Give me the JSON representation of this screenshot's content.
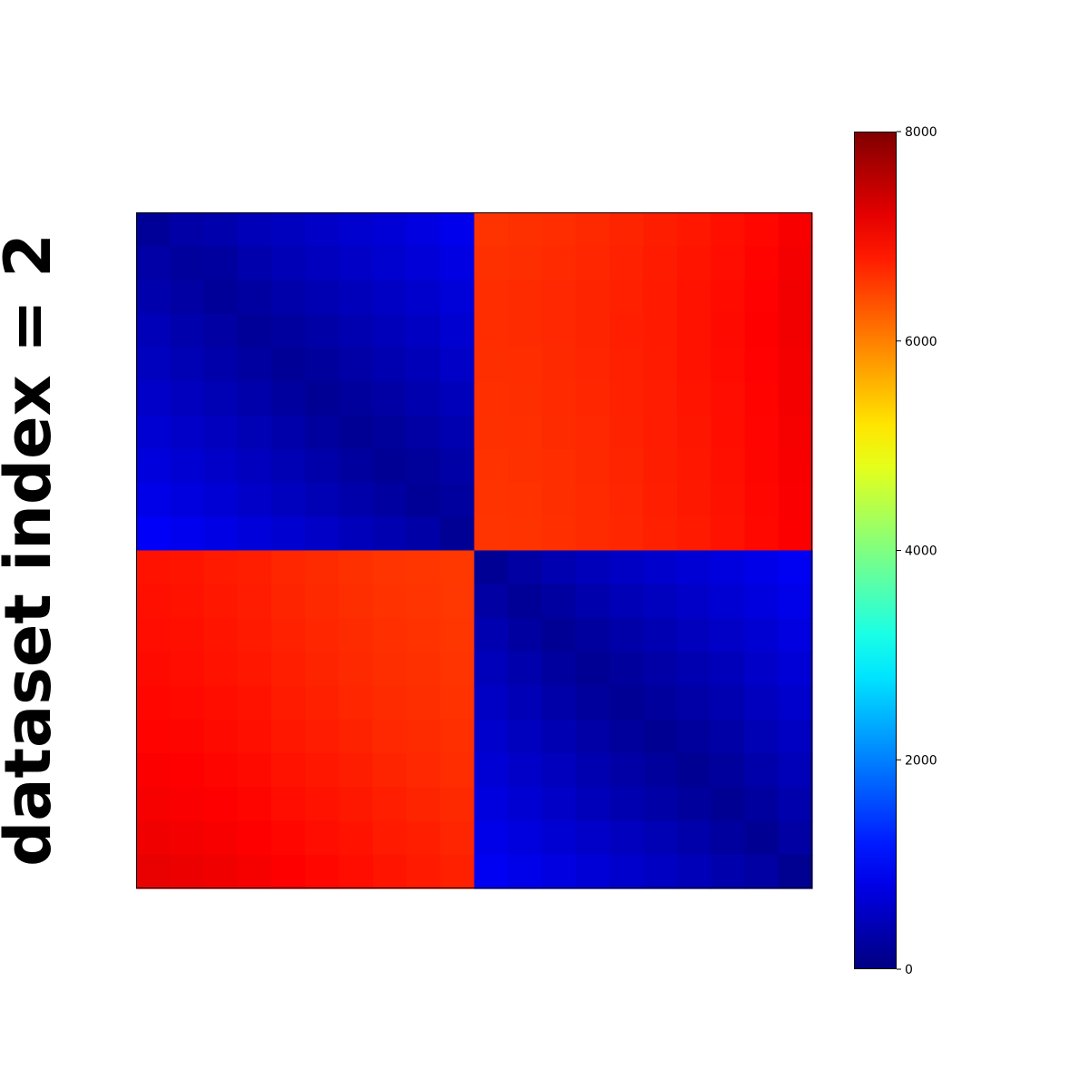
{
  "chart_data": {
    "type": "heatmap",
    "ylabel": "dataset index = 2",
    "xlabel": "",
    "title": "",
    "colormap": "jet",
    "grid": false,
    "rows": 20,
    "cols": 20,
    "value_range": [
      0,
      8000
    ],
    "colorbar": {
      "ticks": [
        0,
        2000,
        4000,
        6000,
        8000
      ],
      "tick_labels": [
        "0",
        "2000",
        "4000",
        "6000",
        "8000"
      ],
      "placement": "right"
    },
    "block_structure": {
      "blocks": 2,
      "block_size": 10,
      "diagonal_blocks": "within-group values from about 150 on the diagonal up to about 950 at the far corners",
      "off_diagonal_blocks": "cross-group values from about 6550 to about 7200"
    },
    "values": [
      [
        200,
        300,
        360,
        440,
        500,
        560,
        620,
        680,
        760,
        850,
        6600,
        6620,
        6650,
        6680,
        6720,
        6770,
        6820,
        6880,
        6950,
        7050
      ],
      [
        300,
        220,
        250,
        350,
        430,
        490,
        560,
        620,
        690,
        780,
        6620,
        6640,
        6670,
        6700,
        6740,
        6790,
        6840,
        6900,
        6980,
        7080
      ],
      [
        360,
        280,
        200,
        260,
        330,
        400,
        470,
        540,
        600,
        700,
        6650,
        6660,
        6690,
        6720,
        6750,
        6800,
        6850,
        6910,
        6990,
        7100
      ],
      [
        440,
        350,
        280,
        190,
        240,
        310,
        380,
        460,
        530,
        630,
        6650,
        6660,
        6690,
        6720,
        6760,
        6800,
        6860,
        6920,
        7000,
        7100
      ],
      [
        500,
        420,
        340,
        260,
        180,
        230,
        300,
        380,
        450,
        560,
        6640,
        6650,
        6680,
        6710,
        6750,
        6790,
        6850,
        6910,
        6990,
        7090
      ],
      [
        570,
        490,
        410,
        330,
        250,
        170,
        220,
        290,
        370,
        470,
        6630,
        6640,
        6670,
        6700,
        6740,
        6780,
        6840,
        6900,
        6980,
        7080
      ],
      [
        650,
        570,
        490,
        410,
        330,
        250,
        170,
        210,
        290,
        390,
        6620,
        6630,
        6660,
        6690,
        6730,
        6780,
        6830,
        6890,
        6970,
        7060
      ],
      [
        730,
        650,
        570,
        490,
        410,
        330,
        250,
        170,
        210,
        310,
        6610,
        6620,
        6650,
        6680,
        6720,
        6770,
        6820,
        6880,
        6960,
        7050
      ],
      [
        820,
        740,
        660,
        580,
        500,
        420,
        340,
        260,
        180,
        240,
        6600,
        6610,
        6640,
        6670,
        6710,
        6760,
        6810,
        6870,
        6950,
        7040
      ],
      [
        950,
        870,
        790,
        710,
        630,
        550,
        470,
        390,
        310,
        160,
        6590,
        6600,
        6630,
        6660,
        6700,
        6750,
        6800,
        6860,
        6940,
        7020
      ],
      [
        6860,
        6840,
        6800,
        6760,
        6700,
        6660,
        6620,
        6590,
        6580,
        6560,
        170,
        280,
        380,
        460,
        540,
        600,
        670,
        740,
        820,
        900
      ],
      [
        6880,
        6860,
        6820,
        6780,
        6720,
        6680,
        6640,
        6610,
        6590,
        6570,
        280,
        180,
        260,
        350,
        430,
        500,
        570,
        650,
        740,
        830
      ],
      [
        6900,
        6880,
        6840,
        6800,
        6740,
        6700,
        6660,
        6630,
        6610,
        6580,
        380,
        260,
        170,
        240,
        320,
        400,
        480,
        560,
        650,
        760
      ],
      [
        6920,
        6900,
        6860,
        6820,
        6760,
        6720,
        6680,
        6640,
        6620,
        6590,
        460,
        350,
        240,
        160,
        220,
        300,
        380,
        470,
        570,
        680
      ],
      [
        6950,
        6930,
        6890,
        6850,
        6790,
        6750,
        6700,
        6660,
        6640,
        6610,
        540,
        430,
        320,
        220,
        160,
        220,
        300,
        390,
        490,
        600
      ],
      [
        6980,
        6960,
        6920,
        6880,
        6820,
        6780,
        6730,
        6690,
        6660,
        6630,
        600,
        500,
        400,
        300,
        220,
        150,
        220,
        310,
        410,
        520
      ],
      [
        7020,
        7000,
        6960,
        6920,
        6860,
        6820,
        6770,
        6720,
        6690,
        6650,
        670,
        570,
        480,
        380,
        300,
        220,
        150,
        230,
        330,
        440
      ],
      [
        7060,
        7040,
        7000,
        6960,
        6900,
        6860,
        6810,
        6760,
        6720,
        6680,
        740,
        650,
        560,
        470,
        390,
        310,
        230,
        150,
        250,
        360
      ],
      [
        7110,
        7090,
        7050,
        7010,
        6950,
        6900,
        6850,
        6800,
        6760,
        6710,
        820,
        740,
        650,
        570,
        490,
        410,
        330,
        250,
        150,
        280
      ],
      [
        7170,
        7150,
        7110,
        7060,
        7000,
        6950,
        6900,
        6840,
        6800,
        6750,
        900,
        830,
        760,
        680,
        600,
        520,
        440,
        360,
        280,
        140
      ]
    ]
  }
}
